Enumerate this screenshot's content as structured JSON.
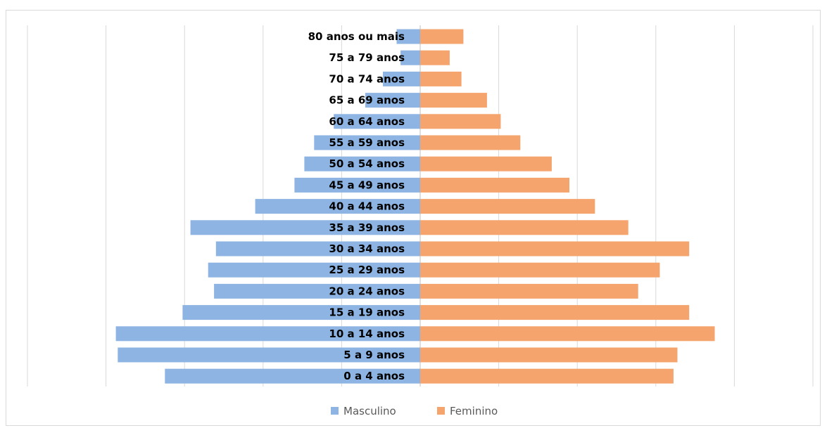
{
  "chart_data": {
    "type": "bar",
    "orientation": "horizontal",
    "layout": "population-pyramid",
    "title": "",
    "xlabel": "",
    "ylabel": "",
    "grid": true,
    "legend_position": "bottom",
    "xlim": [
      -1,
      1
    ],
    "categories": [
      "80 anos ou mais",
      "75 a 79 anos",
      "70 a 74 anos",
      "65 a 69 anos",
      "60 a 64 anos",
      "55 a 59 anos",
      "50 a 54 anos",
      "45 a 49 anos",
      "40 a 44 anos",
      "35 a 39 anos",
      "30 a 34 anos",
      "25 a 29 anos",
      "20 a 24 anos",
      "15 a 19 anos",
      "10 a 14 anos",
      "5 a 9 anos",
      "0 a 4 anos"
    ],
    "series": [
      {
        "name": "Masculino",
        "color": "#8db4e2",
        "side": "left",
        "values": [
          0.06,
          0.05,
          0.095,
          0.14,
          0.22,
          0.27,
          0.295,
          0.32,
          0.42,
          0.585,
          0.52,
          0.54,
          0.525,
          0.605,
          0.775,
          0.77,
          0.65
        ]
      },
      {
        "name": "Feminino",
        "color": "#f4a46c",
        "side": "right",
        "values": [
          0.11,
          0.075,
          0.105,
          0.17,
          0.205,
          0.255,
          0.335,
          0.38,
          0.445,
          0.53,
          0.685,
          0.61,
          0.555,
          0.685,
          0.75,
          0.655,
          0.645
        ]
      }
    ]
  }
}
